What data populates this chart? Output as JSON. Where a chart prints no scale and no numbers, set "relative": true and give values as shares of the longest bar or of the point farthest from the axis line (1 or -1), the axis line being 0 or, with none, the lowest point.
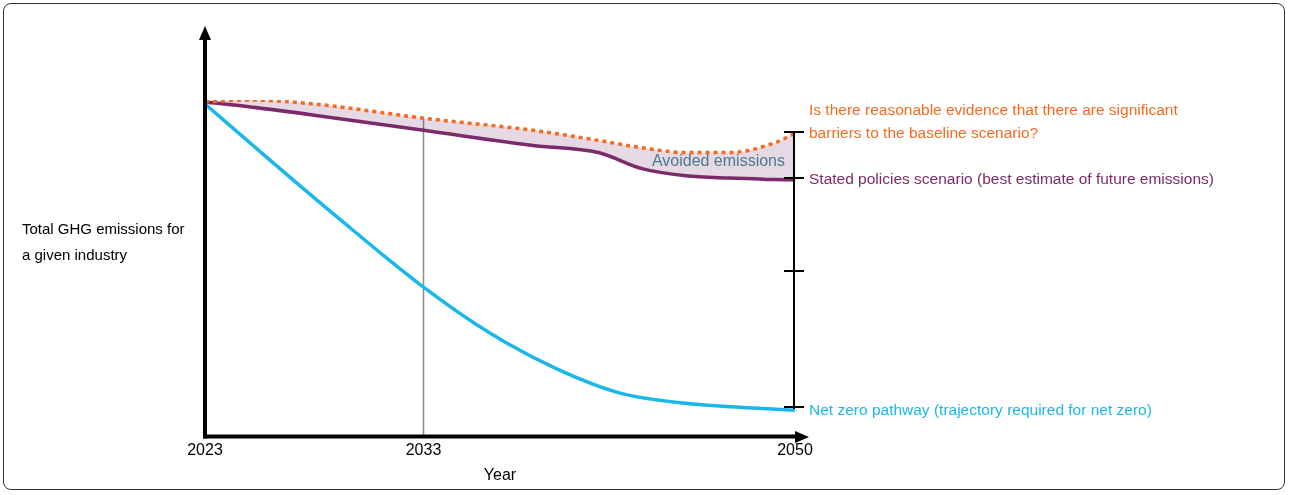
{
  "chart_data": {
    "type": "line",
    "relative": true,
    "xlabel": "Year",
    "ylabel": "Total GHG emissions for a given industry",
    "xlim": [
      2023,
      2050
    ],
    "xticks": [
      2023,
      2033,
      2050
    ],
    "grid": false,
    "legend": false,
    "marker": "none",
    "ref_lines": [
      {
        "axis": "x",
        "value": 2033,
        "color": "#8c8c8c"
      }
    ],
    "annotations": [
      "Avoided emissions"
    ],
    "series": [
      {
        "name": "Is there reasonable evidence that there are significant barriers to the baseline scenario?",
        "color": "#f26b21",
        "line_style": "dotted",
        "x": [
          2023,
          2025,
          2028,
          2033,
          2038,
          2041,
          2043,
          2045,
          2047,
          2049,
          2050
        ],
        "values": [
          0.994,
          1.0,
          0.988,
          0.946,
          0.91,
          0.88,
          0.858,
          0.844,
          0.844,
          0.871,
          0.901
        ]
      },
      {
        "name": "Stated policies scenario (best estimate of future emissions)",
        "color": "#7b2a6b",
        "line_style": "solid",
        "x": [
          2023,
          2025,
          2028,
          2033,
          2038,
          2041,
          2043,
          2045,
          2047,
          2049,
          2050
        ],
        "values": [
          0.994,
          0.98,
          0.955,
          0.91,
          0.865,
          0.844,
          0.796,
          0.775,
          0.768,
          0.764,
          0.763
        ],
        "lower": [
          0.994,
          0.98,
          0.955,
          0.91,
          0.865,
          0.844,
          0.796,
          0.775,
          0.768,
          0.764,
          0.763
        ],
        "upper": [
          0.994,
          1.0,
          0.988,
          0.946,
          0.91,
          0.88,
          0.858,
          0.844,
          0.844,
          0.871,
          0.901
        ]
      },
      {
        "name": "Net zero pathway (trajectory required for net zero)",
        "color": "#1ab8e8",
        "line_style": "solid",
        "x": [
          2023,
          2026,
          2029,
          2033,
          2036,
          2039,
          2042,
          2045,
          2050
        ],
        "values": [
          0.988,
          0.82,
          0.655,
          0.444,
          0.309,
          0.204,
          0.129,
          0.099,
          0.078
        ]
      }
    ]
  }
}
